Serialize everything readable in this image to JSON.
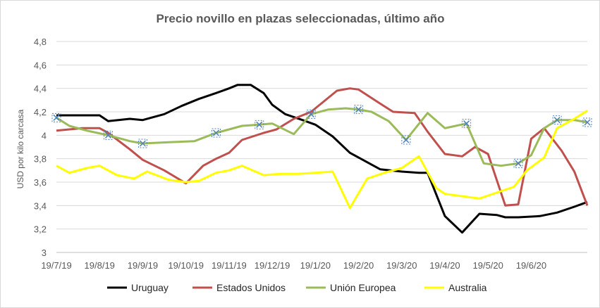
{
  "chart_data": {
    "type": "line",
    "title": "Precio novillo en plazas seleccionadas, último año",
    "xlabel": "",
    "ylabel": "USD por kilo carcasa",
    "ylim": [
      3,
      4.8
    ],
    "yticks": [
      "3",
      "3,2",
      "3,4",
      "3,6",
      "3,8",
      "4",
      "4,2",
      "4,4",
      "4,6",
      "4,8"
    ],
    "xticks": [
      "19/7/19",
      "19/8/19",
      "19/9/19",
      "19/10/19",
      "19/11/19",
      "19/12/19",
      "19/1/20",
      "19/2/20",
      "19/3/20",
      "19/4/20",
      "19/5/20",
      "19/6/20"
    ],
    "xmax": 12.3,
    "grid": true,
    "legend": "bottom",
    "series": [
      {
        "name": "Uruguay",
        "color": "#000000",
        "marker": "none",
        "x": [
          0,
          0.4,
          0.7,
          1.0,
          1.2,
          1.7,
          2.0,
          2.5,
          2.9,
          3.3,
          3.7,
          4.0,
          4.2,
          4.5,
          4.8,
          5.0,
          5.3,
          5.7,
          6.0,
          6.4,
          6.8,
          7.2,
          7.5,
          8.0,
          8.4,
          8.6,
          9.0,
          9.4,
          9.8,
          10.2,
          10.4,
          10.7,
          11.2,
          11.6,
          12.0,
          12.3
        ],
        "values": [
          4.17,
          4.17,
          4.17,
          4.17,
          4.12,
          4.14,
          4.13,
          4.18,
          4.25,
          4.31,
          4.36,
          4.4,
          4.43,
          4.43,
          4.36,
          4.26,
          4.18,
          4.13,
          4.09,
          3.99,
          3.85,
          3.77,
          3.71,
          3.69,
          3.68,
          3.68,
          3.31,
          3.17,
          3.33,
          3.32,
          3.3,
          3.3,
          3.31,
          3.34,
          3.39,
          3.43
        ]
      },
      {
        "name": "Estados Unidos",
        "color": "#c0504d",
        "marker": "none",
        "x": [
          0,
          0.3,
          0.6,
          1.0,
          1.2,
          1.7,
          2.0,
          2.5,
          3.0,
          3.4,
          3.7,
          4.0,
          4.3,
          4.8,
          5.1,
          5.5,
          5.9,
          6.2,
          6.5,
          6.8,
          7.0,
          7.5,
          7.8,
          8.3,
          8.6,
          9.0,
          9.4,
          9.7,
          10.0,
          10.4,
          10.7,
          11.0,
          11.3,
          11.7,
          12.0,
          12.3
        ],
        "values": [
          4.04,
          4.05,
          4.06,
          4.06,
          4.02,
          3.88,
          3.79,
          3.7,
          3.59,
          3.74,
          3.8,
          3.85,
          3.96,
          4.02,
          4.05,
          4.14,
          4.2,
          4.29,
          4.38,
          4.4,
          4.39,
          4.27,
          4.2,
          4.19,
          4.03,
          3.84,
          3.82,
          3.9,
          3.84,
          3.4,
          3.41,
          3.97,
          4.06,
          3.87,
          3.69,
          3.4
        ]
      },
      {
        "name": "Unión Europea",
        "color": "#9bbb59",
        "marker": "x",
        "x": [
          0,
          0.3,
          0.7,
          1.2,
          1.5,
          1.7,
          2.0,
          2.6,
          3.2,
          3.7,
          4.0,
          4.3,
          4.7,
          5.0,
          5.5,
          5.9,
          6.3,
          6.7,
          7.0,
          7.3,
          7.7,
          8.1,
          8.6,
          9.0,
          9.5,
          9.9,
          10.3,
          10.7,
          11.0,
          11.3,
          11.6,
          12.0,
          12.3
        ],
        "values": [
          4.15,
          4.08,
          4.04,
          4.0,
          3.97,
          3.95,
          3.93,
          3.94,
          3.95,
          4.02,
          4.05,
          4.08,
          4.09,
          4.1,
          4.01,
          4.18,
          4.22,
          4.23,
          4.22,
          4.2,
          4.12,
          3.96,
          4.19,
          4.06,
          4.1,
          3.76,
          3.74,
          3.76,
          3.83,
          4.06,
          4.13,
          4.13,
          4.11
        ]
      },
      {
        "name": "Australia",
        "color": "#ffff00",
        "marker": "none",
        "x": [
          0,
          0.3,
          0.7,
          1.0,
          1.4,
          1.8,
          2.1,
          2.6,
          3.0,
          3.3,
          3.7,
          4.0,
          4.3,
          4.8,
          5.2,
          5.6,
          6.0,
          6.4,
          6.8,
          7.2,
          7.6,
          8.0,
          8.4,
          8.8,
          9.0,
          9.4,
          9.8,
          10.2,
          10.6,
          10.9,
          11.3,
          11.6,
          12.0,
          12.3
        ],
        "values": [
          3.74,
          3.68,
          3.72,
          3.74,
          3.66,
          3.63,
          3.69,
          3.62,
          3.6,
          3.61,
          3.68,
          3.7,
          3.74,
          3.66,
          3.67,
          3.67,
          3.68,
          3.69,
          3.38,
          3.63,
          3.68,
          3.72,
          3.82,
          3.55,
          3.5,
          3.48,
          3.46,
          3.51,
          3.56,
          3.7,
          3.81,
          4.06,
          4.14,
          4.21
        ]
      }
    ]
  }
}
